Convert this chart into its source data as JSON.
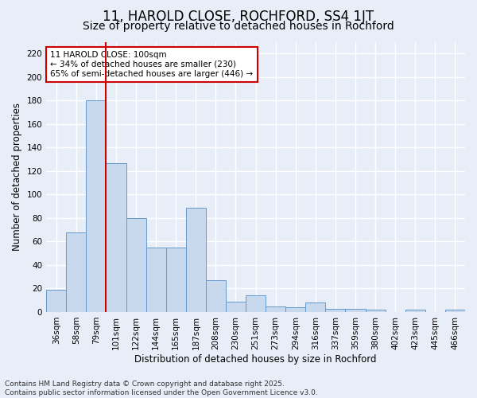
{
  "title": "11, HAROLD CLOSE, ROCHFORD, SS4 1JT",
  "subtitle": "Size of property relative to detached houses in Rochford",
  "xlabel": "Distribution of detached houses by size in Rochford",
  "ylabel": "Number of detached properties",
  "categories": [
    "36sqm",
    "58sqm",
    "79sqm",
    "101sqm",
    "122sqm",
    "144sqm",
    "165sqm",
    "187sqm",
    "208sqm",
    "230sqm",
    "251sqm",
    "273sqm",
    "294sqm",
    "316sqm",
    "337sqm",
    "359sqm",
    "380sqm",
    "402sqm",
    "423sqm",
    "445sqm",
    "466sqm"
  ],
  "values": [
    19,
    68,
    180,
    127,
    80,
    55,
    55,
    89,
    27,
    9,
    14,
    5,
    4,
    8,
    3,
    3,
    2,
    0,
    2,
    0,
    2
  ],
  "bar_color": "#c8d9ee",
  "bar_edge_color": "#6699cc",
  "vline_index": 2,
  "vline_color": "#cc0000",
  "annotation_text": "11 HAROLD CLOSE: 100sqm\n← 34% of detached houses are smaller (230)\n65% of semi-detached houses are larger (446) →",
  "annotation_box_facecolor": "#ffffff",
  "annotation_box_edgecolor": "#cc0000",
  "ylim": [
    0,
    230
  ],
  "yticks": [
    0,
    20,
    40,
    60,
    80,
    100,
    120,
    140,
    160,
    180,
    200,
    220
  ],
  "footnote": "Contains HM Land Registry data © Crown copyright and database right 2025.\nContains public sector information licensed under the Open Government Licence v3.0.",
  "background_color": "#e8eef8",
  "grid_color": "#ffffff",
  "title_fontsize": 12,
  "subtitle_fontsize": 10,
  "axis_label_fontsize": 8.5,
  "tick_fontsize": 7.5,
  "annotation_fontsize": 7.5,
  "footnote_fontsize": 6.5
}
